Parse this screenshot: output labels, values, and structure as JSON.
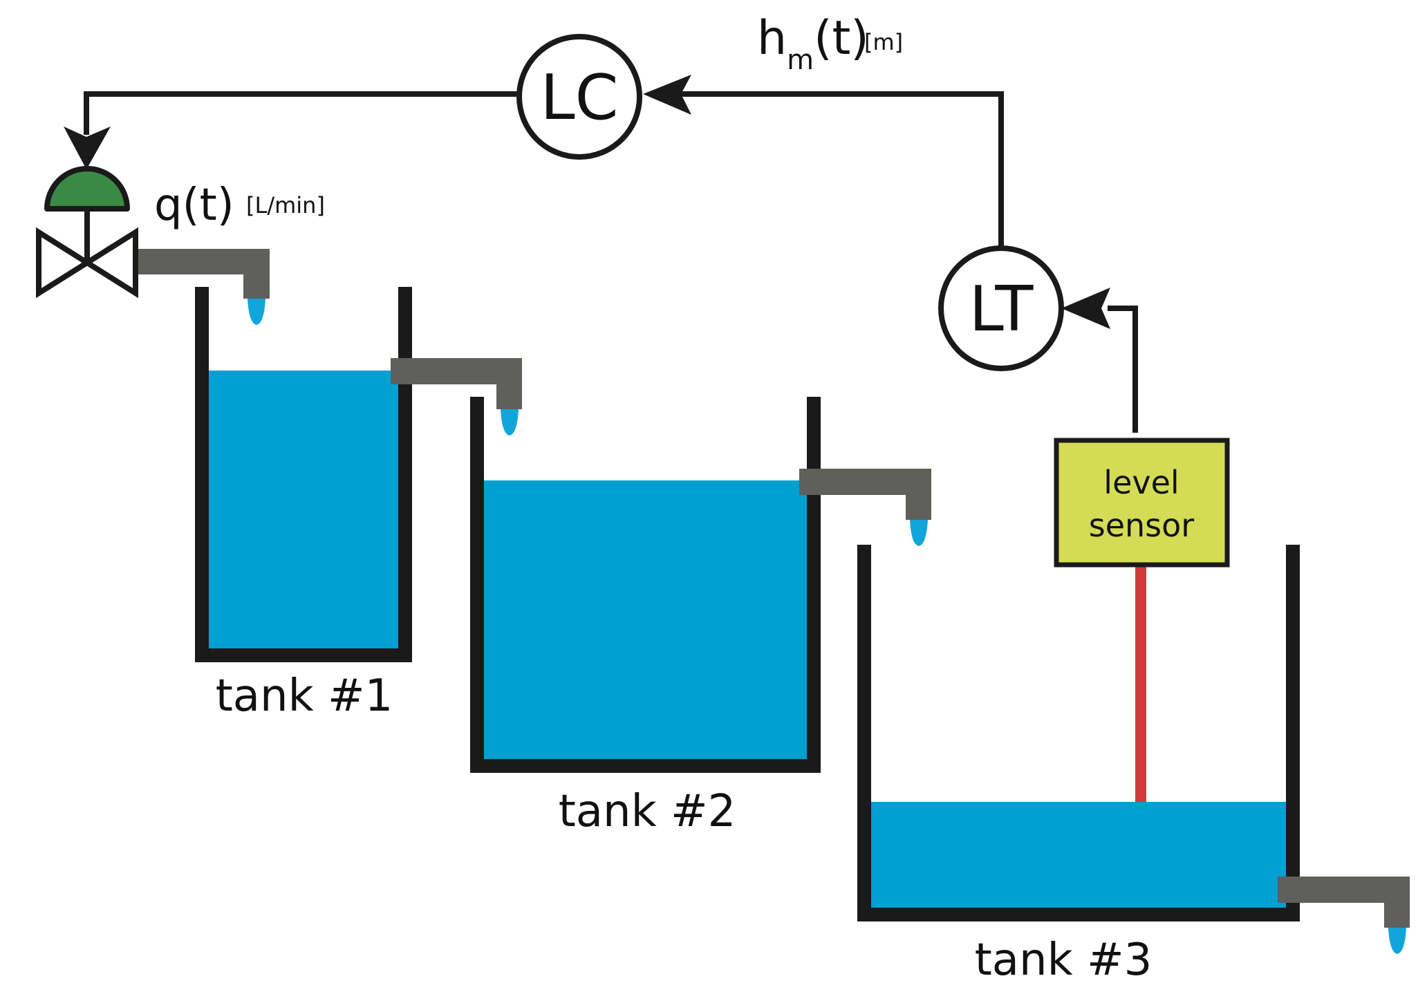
{
  "colors": {
    "line": "#1a1a1a",
    "water": "#00a0d3",
    "pipe": "#5f5f5b",
    "drop": "#12a5dc",
    "actuator": "#3a8a46",
    "sensor_box": "#d4dc55",
    "sensor_rod": "#d23a3a",
    "background": "#ffffff"
  },
  "controller": {
    "label": "LC"
  },
  "transmitter": {
    "label": "LT"
  },
  "signal": {
    "symbol": "h",
    "subscript": "m",
    "arg": "(t)",
    "unit": "[m]"
  },
  "flow": {
    "symbol": "q(t)",
    "unit": "[L/min]"
  },
  "sensor": {
    "line1": "level",
    "line2": "sensor"
  },
  "tanks": [
    {
      "label": "tank #1"
    },
    {
      "label": "tank #2"
    },
    {
      "label": "tank #3"
    }
  ],
  "icons": {
    "valve": "control-valve-icon",
    "drop": "water-drop-icon",
    "arrow": "signal-arrow-icon"
  }
}
